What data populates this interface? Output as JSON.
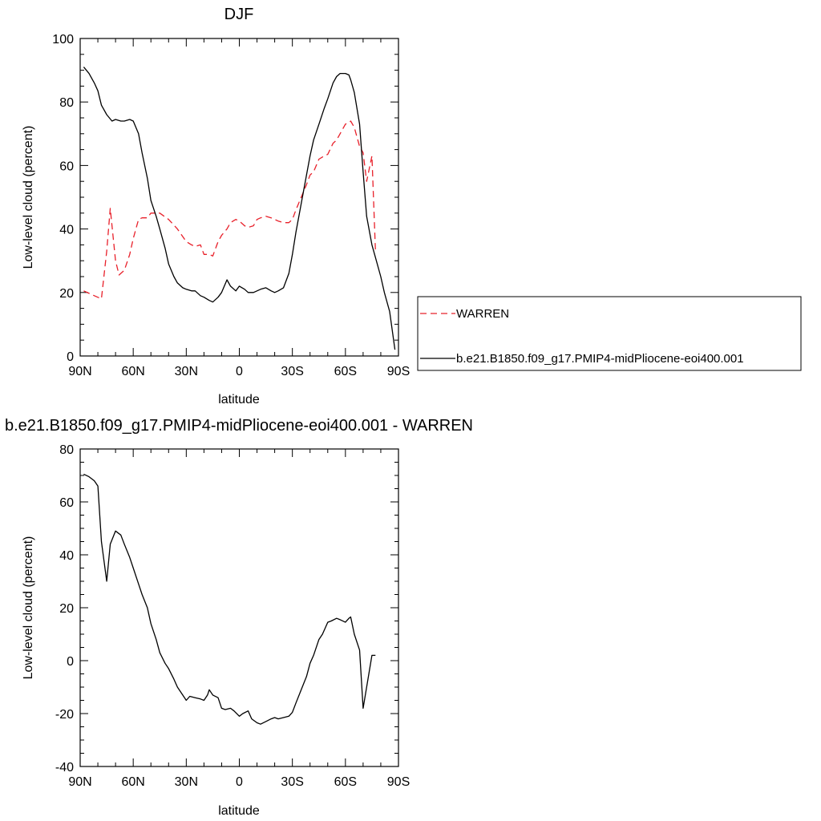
{
  "chart_data": [
    {
      "type": "line",
      "title": "DJF",
      "xlabel": "latitude",
      "ylabel": "Low-level cloud (percent)",
      "xlim": [
        90,
        -90
      ],
      "ylim": [
        0,
        100
      ],
      "xticks": [
        90,
        60,
        30,
        0,
        -30,
        -60,
        -90
      ],
      "xtick_labels": [
        "90N",
        "60N",
        "30N",
        "0",
        "30S",
        "60S",
        "90S"
      ],
      "yticks": [
        0,
        20,
        40,
        60,
        80,
        100
      ],
      "ytick_labels": [
        "0",
        "20",
        "40",
        "60",
        "80",
        "100"
      ],
      "grid": false,
      "legend_position": "right",
      "series": [
        {
          "name": "WARREN",
          "color": "#e8202a",
          "style": "dashed",
          "x": [
            88,
            82,
            78,
            75,
            73,
            70,
            68,
            65,
            62,
            60,
            57,
            55,
            52,
            50,
            45,
            40,
            35,
            30,
            27,
            25,
            22,
            20,
            17,
            15,
            12,
            10,
            7,
            5,
            2,
            0,
            -3,
            -5,
            -8,
            -10,
            -12,
            -15,
            -18,
            -20,
            -22,
            -25,
            -28,
            -30,
            -32,
            -35,
            -38,
            -40,
            -42,
            -45,
            -48,
            -50,
            -53,
            -55,
            -57,
            -60,
            -62,
            -63,
            -65,
            -68,
            -70,
            -72,
            -75,
            -77
          ],
          "y": [
            20.5,
            19,
            18,
            33,
            46.5,
            30,
            25.5,
            27,
            32,
            37,
            43,
            43.5,
            43.5,
            45,
            45,
            43,
            40,
            36,
            35,
            34.5,
            35,
            32,
            32,
            31.5,
            36,
            38,
            40,
            42,
            43,
            42.5,
            41,
            40.5,
            41,
            43,
            43.5,
            44,
            43.5,
            43,
            42.5,
            42,
            42,
            43,
            46,
            50,
            54,
            57,
            58,
            62,
            63,
            63.5,
            67,
            68,
            70,
            73,
            73.5,
            74,
            72,
            66,
            64,
            55,
            63,
            33
          ]
        },
        {
          "name": "b.e21.B1850.f09_g17.PMIP4-midPliocene-eoi400.001",
          "color": "#000000",
          "style": "solid",
          "x": [
            88,
            85,
            82,
            80,
            78,
            75,
            72,
            70,
            67,
            65,
            62,
            60,
            57,
            55,
            52,
            50,
            47,
            45,
            42,
            40,
            37,
            35,
            32,
            30,
            27,
            25,
            22,
            20,
            17,
            15,
            12,
            10,
            7,
            5,
            2,
            0,
            -3,
            -5,
            -8,
            -10,
            -12,
            -15,
            -18,
            -20,
            -22,
            -25,
            -28,
            -30,
            -32,
            -35,
            -38,
            -40,
            -42,
            -45,
            -48,
            -50,
            -53,
            -55,
            -57,
            -60,
            -62,
            -63,
            -65,
            -68,
            -70,
            -72,
            -75,
            -77,
            -80,
            -82,
            -85,
            -88
          ],
          "y": [
            91,
            89,
            86,
            83.5,
            79,
            76,
            74,
            74.5,
            74,
            74,
            74.5,
            74,
            70,
            64,
            56,
            49,
            44,
            40,
            34,
            29,
            25,
            23,
            21.5,
            21,
            20.5,
            20.5,
            19,
            18.5,
            17.5,
            17,
            18.5,
            20,
            24,
            22,
            20.5,
            22,
            21,
            20,
            20,
            20.5,
            21,
            21.5,
            20.5,
            20,
            20.5,
            21.5,
            26,
            32,
            39,
            48,
            57,
            63,
            68,
            73,
            78,
            81,
            86,
            88,
            89,
            89,
            88.5,
            87,
            83,
            73,
            58,
            44,
            35,
            31,
            25,
            20,
            14,
            2
          ]
        }
      ]
    },
    {
      "type": "line",
      "title": "b.e21.B1850.f09_g17.PMIP4-midPliocene-eoi400.001 - WARREN",
      "xlabel": "latitude",
      "ylabel": "Low-level cloud (percent)",
      "xlim": [
        90,
        -90
      ],
      "ylim": [
        -40,
        80
      ],
      "xticks": [
        90,
        60,
        30,
        0,
        -30,
        -60,
        -90
      ],
      "xtick_labels": [
        "90N",
        "60N",
        "30N",
        "0",
        "30S",
        "60S",
        "90S"
      ],
      "yticks": [
        -40,
        -20,
        0,
        20,
        40,
        60,
        80
      ],
      "ytick_labels": [
        "-40",
        "-20",
        "0",
        "20",
        "40",
        "60",
        "80"
      ],
      "grid": false,
      "series": [
        {
          "color": "#000000",
          "style": "solid",
          "x": [
            88,
            85,
            82,
            80,
            78,
            75,
            73,
            70,
            67,
            65,
            62,
            60,
            57,
            55,
            52,
            50,
            47,
            45,
            42,
            40,
            37,
            35,
            32,
            30,
            28,
            25,
            22,
            20,
            18,
            17,
            15,
            12,
            10,
            8,
            5,
            3,
            0,
            -2,
            -5,
            -7,
            -10,
            -12,
            -15,
            -18,
            -20,
            -22,
            -25,
            -28,
            -30,
            -32,
            -35,
            -38,
            -40,
            -42,
            -45,
            -47,
            -50,
            -52,
            -55,
            -57,
            -60,
            -62,
            -63,
            -65,
            -68,
            -70,
            -72,
            -75,
            -77
          ],
          "y": [
            70.5,
            69.5,
            68,
            66,
            45,
            30,
            44,
            49,
            47.5,
            44,
            39,
            35,
            29,
            25,
            20,
            14,
            8,
            3,
            -1,
            -3,
            -7,
            -10,
            -13,
            -15,
            -13.5,
            -14,
            -14.5,
            -15,
            -13,
            -11,
            -13,
            -14,
            -18,
            -18.5,
            -18,
            -19,
            -21,
            -20,
            -19,
            -22,
            -23.5,
            -24,
            -23,
            -22,
            -21.5,
            -22,
            -21.5,
            -21,
            -19.5,
            -16,
            -11,
            -6,
            -1,
            2,
            8,
            10,
            14.5,
            15,
            16,
            15.5,
            14.5,
            16,
            16.5,
            10,
            4,
            -18,
            -10,
            2,
            2
          ]
        }
      ]
    }
  ]
}
